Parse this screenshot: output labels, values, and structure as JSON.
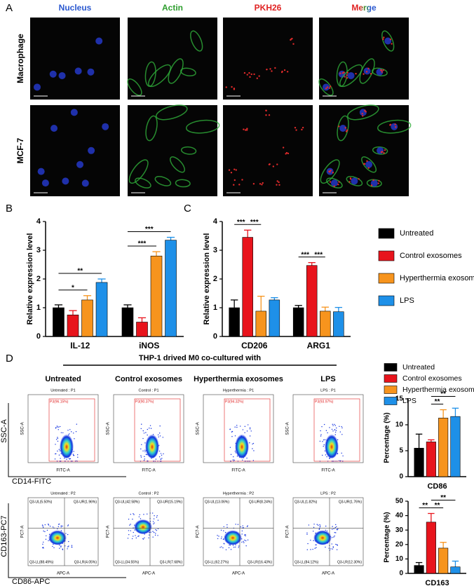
{
  "panel_labels": [
    "A",
    "B",
    "C",
    "D"
  ],
  "microscopy": {
    "channels": [
      {
        "name": "Nucleus",
        "color": "#2a58d0"
      },
      {
        "name": "Actin",
        "color": "#2e9e2e"
      },
      {
        "name": "PKH26",
        "color": "#e02222"
      },
      {
        "name": "Merge",
        "color": "#2a58d0"
      }
    ],
    "rows": [
      "Macrophage",
      "MCF-7"
    ]
  },
  "flow": {
    "header": "THP-1 drived M0 co-cultured with",
    "columns": [
      "Untreated",
      "Control exosomes",
      "Hyperthermia exosomes",
      "LPS"
    ],
    "axis_labels": {
      "row1_y": "SSC-A",
      "row1_x": "CD14-FITC",
      "row2_y": "CD163-PC7",
      "row2_x": "CD86-APC",
      "plot1_y": "SSC-A",
      "plot1_x": "FITC-A",
      "plot2_y": "PC7-A",
      "plot2_x": "APC-A"
    },
    "gate_plots": [
      {
        "title": "Untreated : P1",
        "gate": "P3(96.15%)"
      },
      {
        "title": "Control : P1",
        "gate": "P3(90.37%)"
      },
      {
        "title": "Hyperthermia : P1",
        "gate": "P3(94.32%)"
      },
      {
        "title": "LPS : P1",
        "gate": "P3(93.97%)"
      }
    ],
    "quadrant_plots": [
      {
        "title": "Untreated : P2",
        "ul": "Q3-UL(5.50%)",
        "ur": "Q3-UR(1.96%)",
        "ll": "Q3-LL(88.49%)",
        "lr": "Q3-LR(4.05%)"
      },
      {
        "title": "Control : P2",
        "ul": "Q3-UL(42.58%)",
        "ur": "Q3-UR(15.19%)",
        "ll": "Q3-LL(34.55%)",
        "lr": "Q3-LR(7.68%)"
      },
      {
        "title": "Hyperthermia : P2",
        "ul": "Q3-UL(13.06%)",
        "ur": "Q3-UR(8.24%)",
        "ll": "Q3-LL(62.27%)",
        "lr": "Q3-LR(16.43%)"
      },
      {
        "title": "LPS : P2",
        "ul": "Q3-UL(1.82%)",
        "ur": "Q3-UR(1.76%)",
        "ll": "Q3-LL(84.12%)",
        "lr": "Q3-LR(12.30%)"
      }
    ]
  },
  "chart_data": [
    {
      "type": "bar",
      "ylabel": "Relative expression level",
      "categories": [
        "IL-12",
        "iNOS"
      ],
      "series": [
        {
          "color": "#000000",
          "values": [
            1.0,
            1.0
          ],
          "errors": [
            0.1,
            0.1
          ]
        },
        {
          "color": "#e8141c",
          "values": [
            0.75,
            0.5
          ],
          "errors": [
            0.15,
            0.15
          ]
        },
        {
          "color": "#f7941d",
          "values": [
            1.27,
            2.8
          ],
          "errors": [
            0.15,
            0.15
          ]
        },
        {
          "color": "#1e90e8",
          "values": [
            1.88,
            3.35
          ],
          "errors": [
            0.12,
            0.1
          ]
        }
      ],
      "ylim": [
        0,
        4
      ],
      "yticks": [
        0,
        1,
        2,
        3,
        4
      ],
      "annotations": [
        {
          "text": "*",
          "category": 0,
          "from": 0,
          "to": 2
        },
        {
          "text": "**",
          "category": 0,
          "from": 0,
          "to": 3
        },
        {
          "text": "***",
          "category": 1,
          "from": 0,
          "to": 2
        },
        {
          "text": "***",
          "category": 1,
          "from": 0,
          "to": 3
        }
      ]
    },
    {
      "type": "bar",
      "ylabel": "Relative expression level",
      "categories": [
        "CD206",
        "ARG1"
      ],
      "series": [
        {
          "name": "Untreated",
          "color": "#000000",
          "values": [
            1.0,
            1.0
          ],
          "errors": [
            0.27,
            0.08
          ]
        },
        {
          "name": "Control exosomes",
          "color": "#e8141c",
          "values": [
            3.45,
            2.47
          ],
          "errors": [
            0.25,
            0.1
          ]
        },
        {
          "name": "Hyperthermia exosomes",
          "color": "#f7941d",
          "values": [
            0.88,
            0.88
          ],
          "errors": [
            0.52,
            0.14
          ]
        },
        {
          "name": "LPS",
          "color": "#1e90e8",
          "values": [
            1.27,
            0.86
          ],
          "errors": [
            0.08,
            0.15
          ]
        }
      ],
      "ylim": [
        0,
        4
      ],
      "yticks": [
        0,
        1,
        2,
        3,
        4
      ],
      "annotations": [
        {
          "text": "***",
          "category": 0,
          "from": 0,
          "to": 1
        },
        {
          "text": "***",
          "category": 0,
          "from": 1,
          "to": 2
        },
        {
          "text": "***",
          "category": 1,
          "from": 0,
          "to": 1
        },
        {
          "text": "***",
          "category": 1,
          "from": 1,
          "to": 2
        }
      ]
    },
    {
      "type": "bar",
      "ylabel": "Percentage (%)",
      "categories": [
        "CD86"
      ],
      "series": [
        {
          "name": "Untreated",
          "color": "#000000",
          "values": [
            5.5
          ],
          "errors": [
            2.7
          ]
        },
        {
          "name": "Control exosomes",
          "color": "#e8141c",
          "values": [
            6.7
          ],
          "errors": [
            0.4
          ]
        },
        {
          "name": "Hyperthermia exosomes",
          "color": "#f7941d",
          "values": [
            11.3
          ],
          "errors": [
            1.6
          ]
        },
        {
          "name": "LPS",
          "color": "#1e90e8",
          "values": [
            11.6
          ],
          "errors": [
            1.6
          ]
        }
      ],
      "ylim": [
        0,
        15
      ],
      "yticks": [
        0,
        5,
        10,
        15
      ],
      "annotations": [
        {
          "text": "**",
          "category": 0,
          "from": 1,
          "to": 2
        },
        {
          "text": "**",
          "category": 0,
          "from": 1,
          "to": 3
        }
      ]
    },
    {
      "type": "bar",
      "ylabel": "Percentage (%)",
      "categories": [
        "CD163"
      ],
      "series": [
        {
          "color": "#000000",
          "values": [
            5.5
          ],
          "errors": [
            2
          ]
        },
        {
          "color": "#e8141c",
          "values": [
            35.5
          ],
          "errors": [
            6
          ]
        },
        {
          "color": "#f7941d",
          "values": [
            17.5
          ],
          "errors": [
            4
          ]
        },
        {
          "color": "#1e90e8",
          "values": [
            4.5
          ],
          "errors": [
            4
          ]
        }
      ],
      "ylim": [
        0,
        50
      ],
      "yticks": [
        0,
        10,
        20,
        30,
        40,
        50
      ],
      "annotations": [
        {
          "text": "**",
          "category": 0,
          "from": 0,
          "to": 1
        },
        {
          "text": "**",
          "category": 0,
          "from": 1,
          "to": 2
        },
        {
          "text": "**",
          "category": 0,
          "from": 1,
          "to": 3
        }
      ]
    }
  ]
}
